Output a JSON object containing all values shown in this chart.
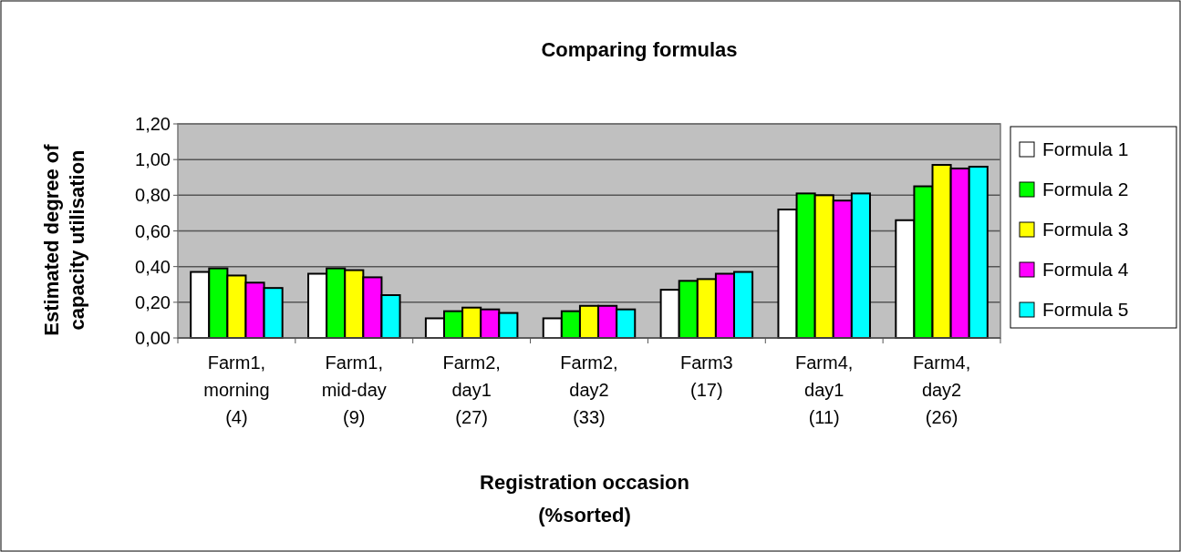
{
  "chart_data": {
    "type": "bar",
    "title": "Comparing formulas",
    "xlabel": "Registration occasion\n(%sorted)",
    "ylabel": "Estimated degree of\ncapacity utilisation",
    "categories": [
      "Farm1,\nmorning\n(4)",
      "Farm1,\nmid-day\n(9)",
      "Farm2,\nday1\n(27)",
      "Farm2,\nday2\n(33)",
      "Farm3\n(17)",
      "Farm4,\nday1\n(11)",
      "Farm4,\nday2\n(26)"
    ],
    "series": [
      {
        "name": "Formula 1",
        "color": "#ffffff",
        "values": [
          0.37,
          0.36,
          0.11,
          0.11,
          0.27,
          0.72,
          0.66
        ]
      },
      {
        "name": "Formula 2",
        "color": "#00ff00",
        "values": [
          0.39,
          0.39,
          0.15,
          0.15,
          0.32,
          0.81,
          0.85
        ]
      },
      {
        "name": "Formula 3",
        "color": "#ffff00",
        "values": [
          0.35,
          0.38,
          0.17,
          0.18,
          0.33,
          0.8,
          0.97
        ]
      },
      {
        "name": "Formula 4",
        "color": "#ff00ff",
        "values": [
          0.31,
          0.34,
          0.16,
          0.18,
          0.36,
          0.77,
          0.95
        ]
      },
      {
        "name": "Formula 5",
        "color": "#00ffff",
        "values": [
          0.28,
          0.24,
          0.14,
          0.16,
          0.37,
          0.81,
          0.96
        ]
      }
    ],
    "ylim": [
      0,
      1.2
    ],
    "yticks": [
      {
        "value": 0,
        "label": "0,00"
      },
      {
        "value": 0.2,
        "label": "0,20"
      },
      {
        "value": 0.4,
        "label": "0,40"
      },
      {
        "value": 0.6,
        "label": "0,60"
      },
      {
        "value": 0.8,
        "label": "0,80"
      },
      {
        "value": 1,
        "label": "1,00"
      },
      {
        "value": 1.2,
        "label": "1,20"
      }
    ],
    "grid": "y",
    "legend": "right"
  }
}
